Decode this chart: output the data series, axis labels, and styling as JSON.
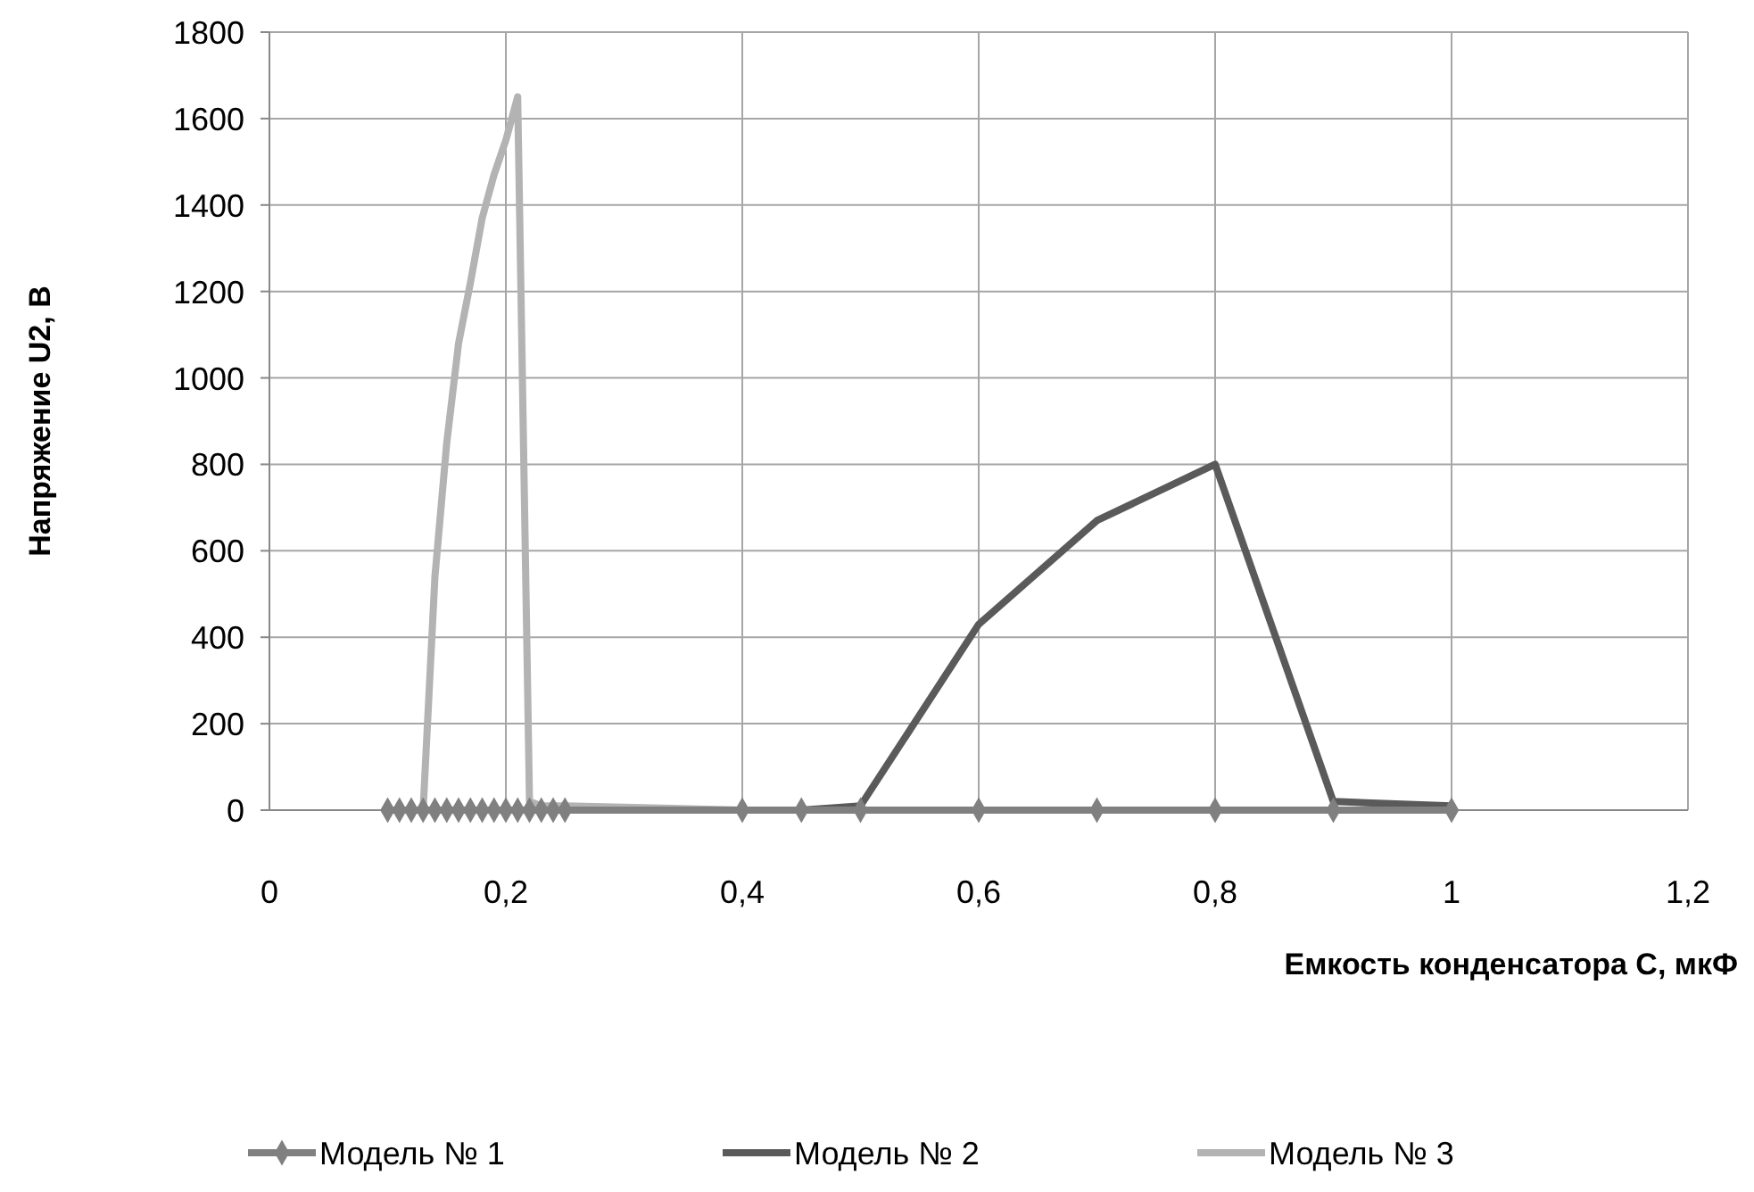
{
  "chart_data": {
    "type": "line",
    "xlabel": "Емкость конденсатора  С, мкФ",
    "ylabel": "Напряжение U2, В",
    "xlim": [
      0,
      1.2
    ],
    "ylim": [
      0,
      1800
    ],
    "xticks": [
      0,
      {
        "value": 0.2,
        "label": "0,2"
      },
      {
        "value": 0.4,
        "label": "0,4"
      },
      {
        "value": 0.6,
        "label": "0,6"
      },
      {
        "value": 0.8,
        "label": "0,8"
      },
      1,
      {
        "value": 1.2,
        "label": "1,2"
      }
    ],
    "yticks": [
      0,
      200,
      400,
      600,
      800,
      1000,
      1200,
      1400,
      1600,
      1800
    ],
    "grid": true,
    "legend": "bottom",
    "series": [
      {
        "name": "Модель № 1",
        "color": "#808080",
        "marker": "diamond",
        "x": [
          0.1,
          0.11,
          0.12,
          0.13,
          0.14,
          0.15,
          0.16,
          0.17,
          0.18,
          0.19,
          0.2,
          0.21,
          0.22,
          0.23,
          0.24,
          0.25,
          0.4,
          0.45,
          0.5,
          0.6,
          0.7,
          0.8,
          0.9,
          1
        ],
        "values": [
          0,
          0,
          0,
          0,
          0,
          0,
          0,
          0,
          0,
          0,
          0,
          0,
          0,
          0,
          0,
          0,
          0,
          0,
          0,
          0,
          0,
          0,
          0,
          0
        ]
      },
      {
        "name": "Модель № 2",
        "color": "#5a5a5a",
        "marker": "none",
        "x": [
          0.1,
          0.15,
          0.2,
          0.25,
          0.4,
          0.45,
          0.5,
          0.6,
          0.7,
          0.8,
          0.9,
          1
        ],
        "values": [
          0,
          0,
          0,
          0,
          0,
          0,
          10,
          430,
          670,
          800,
          20,
          10
        ]
      },
      {
        "name": "Модель № 3",
        "color": "#b3b3b3",
        "marker": "none",
        "x": [
          0.1,
          0.11,
          0.12,
          0.13,
          0.14,
          0.15,
          0.16,
          0.17,
          0.18,
          0.19,
          0.2,
          0.21,
          0.22,
          0.23,
          0.24,
          0.25,
          0.4,
          0.6,
          0.8,
          1
        ],
        "values": [
          0,
          0,
          0,
          0,
          540,
          850,
          1080,
          1220,
          1370,
          1470,
          1550,
          1650,
          20,
          10,
          10,
          10,
          0,
          0,
          0,
          0
        ]
      }
    ]
  }
}
